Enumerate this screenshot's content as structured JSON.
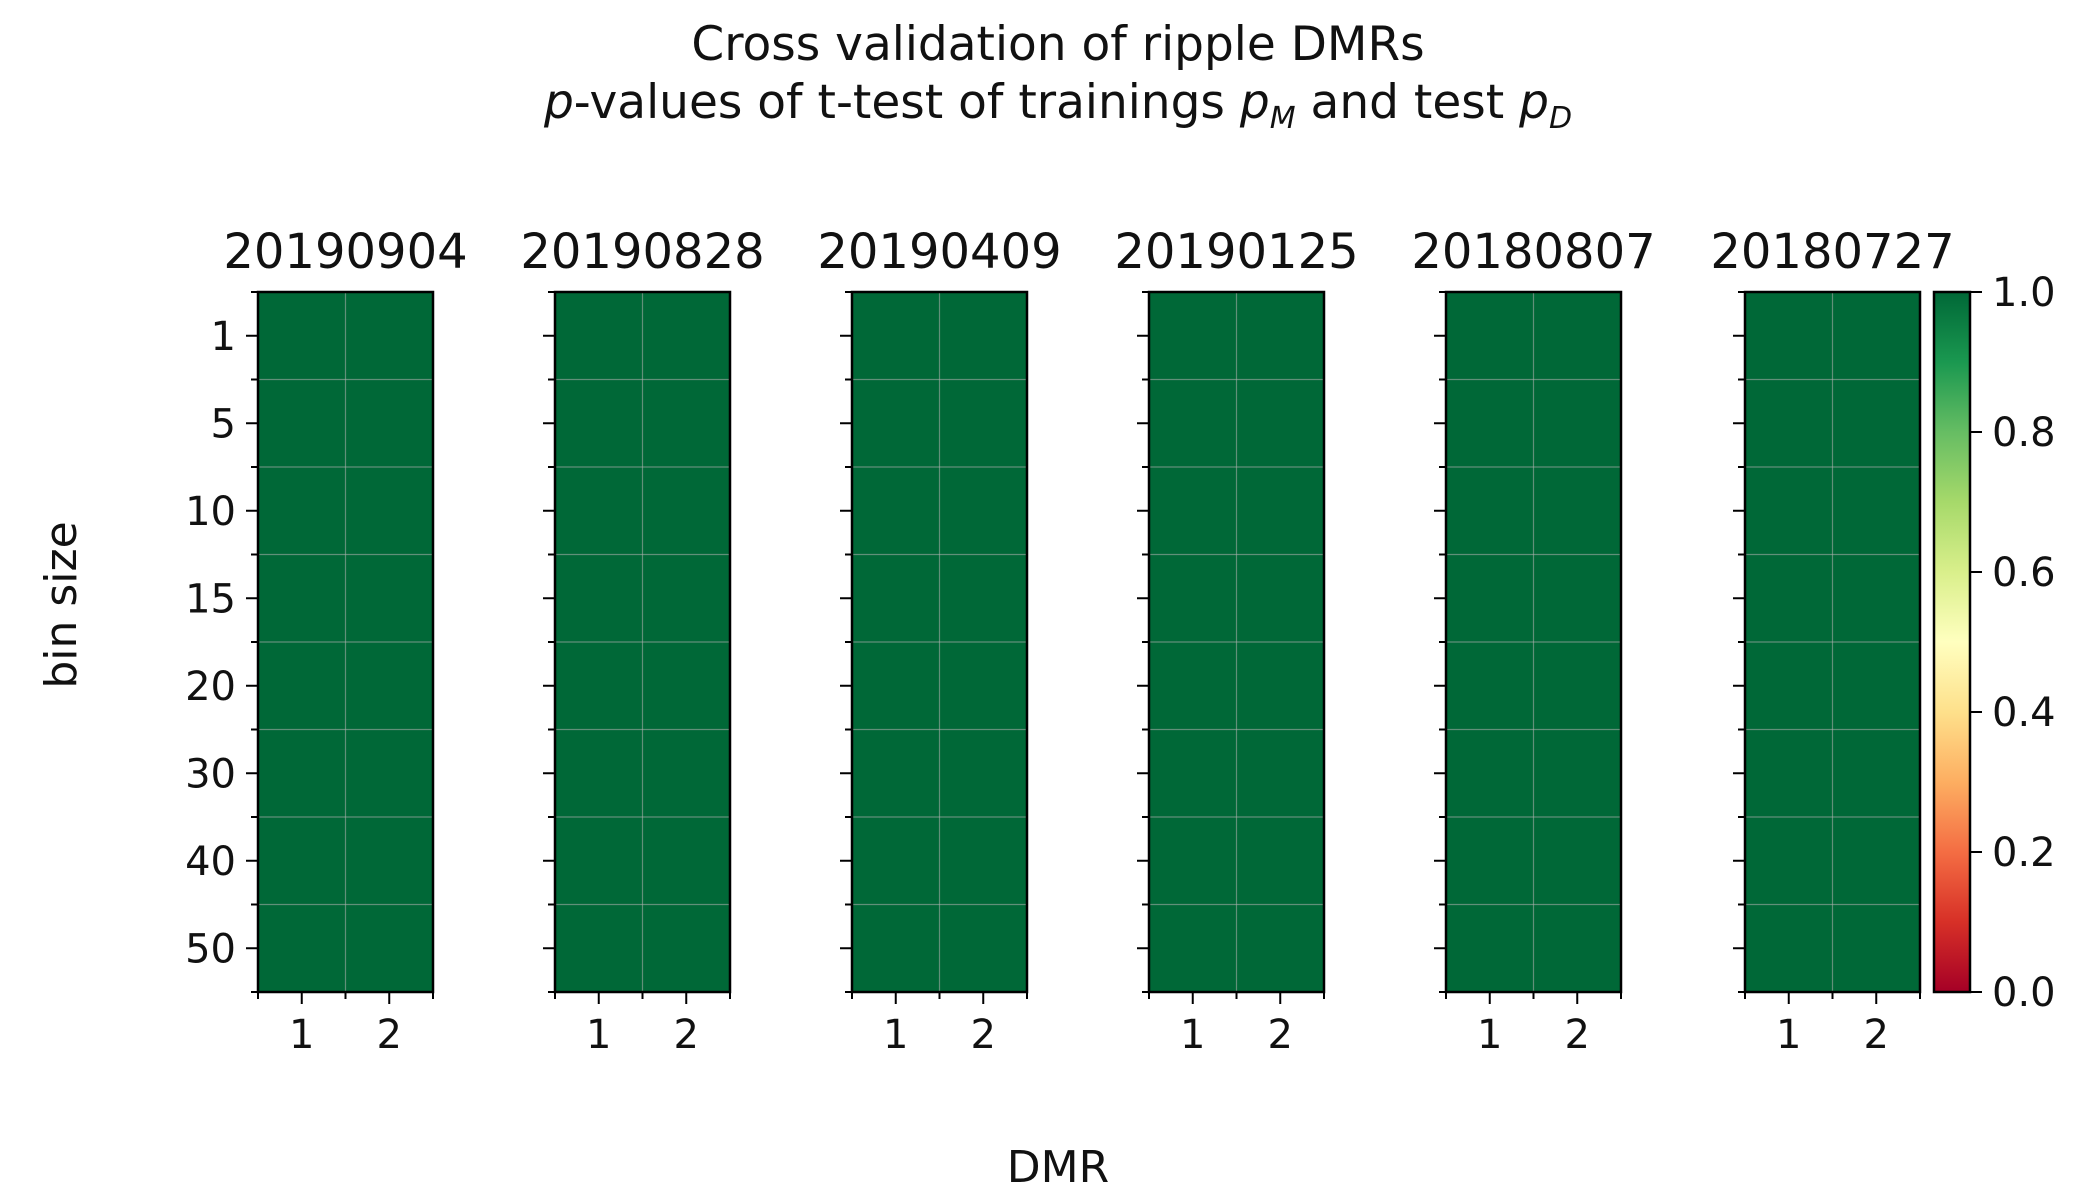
{
  "chart_data": {
    "type": "heatmap",
    "title": {
      "line1": "Cross validation of ripple DMRs",
      "line2": {
        "p": "p",
        "part1": "-values of t-test of trainings ",
        "pm": "p",
        "pm_sub": "M",
        "part2": " and test ",
        "pd": "p",
        "pd_sub": "D"
      }
    },
    "xlabel": "DMR",
    "ylabel": "bin size",
    "x_categories": [
      "1",
      "2"
    ],
    "y_categories": [
      "1",
      "5",
      "10",
      "15",
      "20",
      "30",
      "40",
      "50"
    ],
    "panels": [
      {
        "title": "20190904",
        "values": [
          [
            1,
            1
          ],
          [
            1,
            1
          ],
          [
            1,
            1
          ],
          [
            1,
            1
          ],
          [
            1,
            1
          ],
          [
            1,
            1
          ],
          [
            1,
            1
          ],
          [
            1,
            1
          ]
        ]
      },
      {
        "title": "20190828",
        "values": [
          [
            1,
            1
          ],
          [
            1,
            1
          ],
          [
            1,
            1
          ],
          [
            1,
            1
          ],
          [
            1,
            1
          ],
          [
            1,
            1
          ],
          [
            1,
            1
          ],
          [
            1,
            1
          ]
        ]
      },
      {
        "title": "20190409",
        "values": [
          [
            1,
            1
          ],
          [
            1,
            1
          ],
          [
            1,
            1
          ],
          [
            1,
            1
          ],
          [
            1,
            1
          ],
          [
            1,
            1
          ],
          [
            1,
            1
          ],
          [
            1,
            1
          ]
        ]
      },
      {
        "title": "20190125",
        "values": [
          [
            1,
            1
          ],
          [
            1,
            1
          ],
          [
            1,
            1
          ],
          [
            1,
            1
          ],
          [
            1,
            1
          ],
          [
            1,
            1
          ],
          [
            1,
            1
          ],
          [
            1,
            1
          ]
        ]
      },
      {
        "title": "20180807",
        "values": [
          [
            1,
            1
          ],
          [
            1,
            1
          ],
          [
            1,
            1
          ],
          [
            1,
            1
          ],
          [
            1,
            1
          ],
          [
            1,
            1
          ],
          [
            1,
            1
          ],
          [
            1,
            1
          ]
        ]
      },
      {
        "title": "20180727",
        "values": [
          [
            1,
            1
          ],
          [
            1,
            1
          ],
          [
            1,
            1
          ],
          [
            1,
            1
          ],
          [
            1,
            1
          ],
          [
            1,
            1
          ],
          [
            1,
            1
          ],
          [
            1,
            1
          ]
        ]
      }
    ],
    "colorbar": {
      "colormap": "RdYlGn",
      "range": [
        0.0,
        1.0
      ],
      "ticks": [
        "0.0",
        "0.2",
        "0.4",
        "0.6",
        "0.8",
        "1.0"
      ]
    },
    "grid": true
  }
}
